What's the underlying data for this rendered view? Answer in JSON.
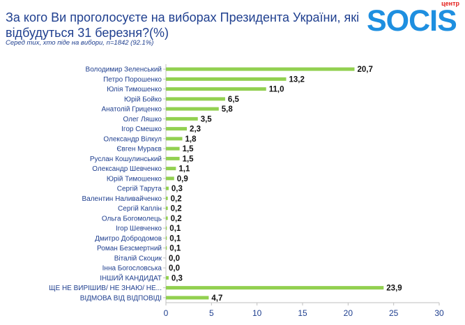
{
  "title": "За кого Ви проголосуєте на виборах Президента України, які відбудуться 31 березня?(%)",
  "subtitle": "Серед тих, хто піде на вибори, n=1842 (92.1%)",
  "logo": {
    "text": "SOCIS",
    "prefix": "центр"
  },
  "colors": {
    "bar": "#92d050",
    "title": "#1f3f8f",
    "label": "#1f3f8f",
    "value": "#111111",
    "axis": "#bfbfbf",
    "tick": "#1f3f8f",
    "logo": "#1e8fe0",
    "logo_prefix": "#e4201c"
  },
  "chart_data": {
    "type": "bar",
    "orientation": "horizontal",
    "title": "За кого Ви проголосуєте на виборах Президента України, які відбудуться 31 березня?(%)",
    "xlabel": "",
    "ylabel": "",
    "xlim": [
      0,
      30
    ],
    "xticks": [
      0,
      5,
      10,
      15,
      20,
      25,
      30
    ],
    "categories": [
      "Володимир Зеленський",
      "Петро Порошенко",
      "Юлія Тимошенко",
      "Юрій Бойко",
      "Анатолій Гриценко",
      "Олег Ляшко",
      "Ігор Смешко",
      "Олександр Вілкул",
      "Євген Мураєв",
      "Руслан Кошулинський",
      "Олександр Шевченко",
      "Юрій Тимошенко",
      "Сергій Тарута",
      "Валентин Наливайченко",
      "Сергій Каплін",
      "Ольга Богомолець",
      "Ігор Шевченко",
      "Дмитро Добродомов",
      "Роман Безсмертний",
      "Віталій Скоцик",
      "Інна Богословська",
      "ІНШИЙ КАНДИДАТ",
      "ЩЕ НЕ ВИРІШИВ/ НЕ ЗНАЮ/ НЕ...",
      "ВІДМОВА ВІД ВІДПОВІДІ"
    ],
    "values": [
      20.7,
      13.2,
      11.0,
      6.5,
      5.8,
      3.5,
      2.3,
      1.8,
      1.5,
      1.5,
      1.1,
      0.9,
      0.3,
      0.2,
      0.2,
      0.2,
      0.1,
      0.1,
      0.1,
      0.0,
      0.0,
      0.3,
      23.9,
      4.7
    ],
    "value_labels": [
      "20,7",
      "13,2",
      "11,0",
      "6,5",
      "5,8",
      "3,5",
      "2,3",
      "1,8",
      "1,5",
      "1,5",
      "1,1",
      "0,9",
      "0,3",
      "0,2",
      "0,2",
      "0,2",
      "0,1",
      "0,1",
      "0,1",
      "0,0",
      "0,0",
      "0,3",
      "23,9",
      "4,7"
    ]
  }
}
